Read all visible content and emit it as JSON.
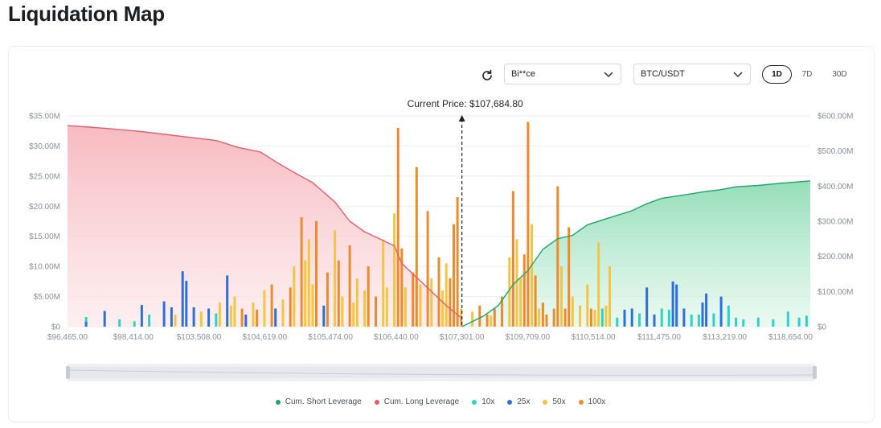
{
  "page": {
    "title": "Liquidation Map"
  },
  "controls": {
    "exchange": "Bi**ce",
    "pair": "BTC/USDT",
    "ranges": [
      "1D",
      "7D",
      "30D"
    ],
    "active_range": "1D"
  },
  "colors": {
    "short": "#1fa56b",
    "long": "#e35d6a",
    "x10": "#2ed2c4",
    "x25": "#2d6fd6",
    "x50": "#f4c542",
    "x100": "#ee8a2e"
  },
  "chart_data": {
    "type": "bar",
    "current_price_label": "Current Price: $107,684.80",
    "current_price": 107684.8,
    "x_tick_labels": [
      "$96,465.00",
      "$98,414.00",
      "$103,508.00",
      "$104,619.00",
      "$105,474.00",
      "$106,440.00",
      "$107,301.00",
      "$109,709.00",
      "$110,514.00",
      "$111,475.00",
      "$113,219.00",
      "$118,654.00"
    ],
    "y_left": {
      "ylim": [
        0,
        35000000
      ],
      "ticks": [
        "$0",
        "$5.00M",
        "$10.00M",
        "$15.00M",
        "$20.00M",
        "$25.00M",
        "$30.00M",
        "$35.00M"
      ]
    },
    "y_right": {
      "ylim": [
        0,
        600000000
      ],
      "ticks": [
        "$0",
        "$100.00M",
        "$200.00M",
        "$300.00M",
        "$400.00M",
        "$500.00M",
        "$600.00M"
      ]
    },
    "legend": [
      "Cum. Short Leverage",
      "Cum. Long Leverage",
      "10x",
      "25x",
      "50x",
      "100x"
    ],
    "series": [
      {
        "name": "Cum. Long Leverage",
        "axis": "right",
        "points": [
          [
            0,
            572
          ],
          [
            0.03,
            568
          ],
          [
            0.06,
            563
          ],
          [
            0.1,
            555
          ],
          [
            0.14,
            545
          ],
          [
            0.18,
            535
          ],
          [
            0.2,
            530
          ],
          [
            0.23,
            510
          ],
          [
            0.26,
            497
          ],
          [
            0.28,
            470
          ],
          [
            0.3,
            445
          ],
          [
            0.33,
            410
          ],
          [
            0.36,
            355
          ],
          [
            0.38,
            300
          ],
          [
            0.4,
            270
          ],
          [
            0.42,
            250
          ],
          [
            0.44,
            230
          ],
          [
            0.45,
            180
          ],
          [
            0.47,
            140
          ],
          [
            0.49,
            100
          ],
          [
            0.51,
            60
          ],
          [
            0.53,
            25
          ],
          [
            0.531,
            0
          ]
        ]
      },
      {
        "name": "Cum. Short Leverage",
        "axis": "right",
        "points": [
          [
            0.531,
            0
          ],
          [
            0.56,
            30
          ],
          [
            0.58,
            60
          ],
          [
            0.6,
            120
          ],
          [
            0.62,
            160
          ],
          [
            0.64,
            220
          ],
          [
            0.66,
            250
          ],
          [
            0.68,
            260
          ],
          [
            0.7,
            290
          ],
          [
            0.73,
            310
          ],
          [
            0.76,
            330
          ],
          [
            0.78,
            350
          ],
          [
            0.8,
            365
          ],
          [
            0.83,
            375
          ],
          [
            0.86,
            385
          ],
          [
            0.88,
            390
          ],
          [
            0.9,
            398
          ],
          [
            0.93,
            402
          ],
          [
            0.96,
            408
          ],
          [
            1,
            415
          ]
        ]
      }
    ],
    "bars": [
      [
        0.025,
        1.6,
        "x10"
      ],
      [
        0.025,
        0.8,
        "x25"
      ],
      [
        0.05,
        2.6,
        "x25"
      ],
      [
        0.07,
        1.2,
        "x10"
      ],
      [
        0.09,
        0.9,
        "x10"
      ],
      [
        0.1,
        3.6,
        "x25"
      ],
      [
        0.11,
        2.0,
        "x10"
      ],
      [
        0.13,
        4.2,
        "x25"
      ],
      [
        0.14,
        3.2,
        "x25"
      ],
      [
        0.145,
        2.0,
        "x50"
      ],
      [
        0.155,
        9.2,
        "x25"
      ],
      [
        0.16,
        7.6,
        "x25"
      ],
      [
        0.17,
        3.2,
        "x25"
      ],
      [
        0.18,
        2.5,
        "x50"
      ],
      [
        0.19,
        3.0,
        "x25"
      ],
      [
        0.2,
        2.2,
        "x10"
      ],
      [
        0.205,
        4.0,
        "x50"
      ],
      [
        0.215,
        8.5,
        "x25"
      ],
      [
        0.22,
        3.5,
        "x50"
      ],
      [
        0.225,
        5.0,
        "x50"
      ],
      [
        0.235,
        3.0,
        "x100"
      ],
      [
        0.24,
        2.0,
        "x25"
      ],
      [
        0.25,
        4.0,
        "x50"
      ],
      [
        0.255,
        2.8,
        "x100"
      ],
      [
        0.265,
        6.0,
        "x50"
      ],
      [
        0.275,
        7.0,
        "x100"
      ],
      [
        0.28,
        3.0,
        "x25"
      ],
      [
        0.29,
        4.5,
        "x50"
      ],
      [
        0.3,
        6.5,
        "x100"
      ],
      [
        0.305,
        10.0,
        "x50"
      ],
      [
        0.315,
        18.2,
        "x100"
      ],
      [
        0.32,
        11.0,
        "x50"
      ],
      [
        0.325,
        14.5,
        "x50"
      ],
      [
        0.33,
        7.0,
        "x50"
      ],
      [
        0.335,
        17.5,
        "x100"
      ],
      [
        0.345,
        3.5,
        "x25"
      ],
      [
        0.35,
        9.0,
        "x100"
      ],
      [
        0.36,
        16.0,
        "x50"
      ],
      [
        0.365,
        11.0,
        "x100"
      ],
      [
        0.37,
        5.0,
        "x50"
      ],
      [
        0.38,
        13.5,
        "x100"
      ],
      [
        0.385,
        4.0,
        "x50"
      ],
      [
        0.39,
        8.0,
        "x50"
      ],
      [
        0.4,
        6.0,
        "x50"
      ],
      [
        0.405,
        10.0,
        "x100"
      ],
      [
        0.415,
        5.0,
        "x100"
      ],
      [
        0.425,
        14.5,
        "x50"
      ],
      [
        0.43,
        6.5,
        "x50"
      ],
      [
        0.44,
        18.8,
        "x50"
      ],
      [
        0.445,
        33.0,
        "x100"
      ],
      [
        0.45,
        13.0,
        "x100"
      ],
      [
        0.455,
        6.5,
        "x50"
      ],
      [
        0.465,
        9.0,
        "x100"
      ],
      [
        0.47,
        26.5,
        "x100"
      ],
      [
        0.475,
        7.0,
        "x50"
      ],
      [
        0.485,
        19.2,
        "x100"
      ],
      [
        0.49,
        8.0,
        "x50"
      ],
      [
        0.5,
        11.5,
        "x100"
      ],
      [
        0.505,
        6.0,
        "x50"
      ],
      [
        0.51,
        10.5,
        "x50"
      ],
      [
        0.515,
        8.0,
        "x100"
      ],
      [
        0.52,
        17.0,
        "x100"
      ],
      [
        0.525,
        21.5,
        "x100"
      ],
      [
        0.53,
        3.0,
        "x50"
      ],
      [
        0.545,
        2.5,
        "x50"
      ],
      [
        0.555,
        3.5,
        "x100"
      ],
      [
        0.565,
        2.0,
        "x100"
      ],
      [
        0.57,
        1.8,
        "x50"
      ],
      [
        0.575,
        3.0,
        "x100"
      ],
      [
        0.585,
        5.0,
        "x100"
      ],
      [
        0.595,
        11.5,
        "x50"
      ],
      [
        0.6,
        22.5,
        "x100"
      ],
      [
        0.605,
        14.5,
        "x50"
      ],
      [
        0.61,
        8.0,
        "x50"
      ],
      [
        0.615,
        12.0,
        "x100"
      ],
      [
        0.62,
        34.0,
        "x100"
      ],
      [
        0.625,
        17.0,
        "x50"
      ],
      [
        0.63,
        8.5,
        "x100"
      ],
      [
        0.635,
        3.0,
        "x50"
      ],
      [
        0.64,
        4.0,
        "x100"
      ],
      [
        0.645,
        2.0,
        "x100"
      ],
      [
        0.655,
        3.0,
        "x100"
      ],
      [
        0.66,
        23.3,
        "x100"
      ],
      [
        0.665,
        10.0,
        "x50"
      ],
      [
        0.67,
        3.0,
        "x100"
      ],
      [
        0.675,
        16.5,
        "x100"
      ],
      [
        0.68,
        5.0,
        "x50"
      ],
      [
        0.69,
        3.5,
        "x50"
      ],
      [
        0.7,
        7.0,
        "x50"
      ],
      [
        0.705,
        3.0,
        "x100"
      ],
      [
        0.71,
        2.8,
        "x50"
      ],
      [
        0.715,
        14.0,
        "x50"
      ],
      [
        0.72,
        3.0,
        "x10"
      ],
      [
        0.725,
        3.5,
        "x50"
      ],
      [
        0.73,
        10.0,
        "x50"
      ],
      [
        0.74,
        1.5,
        "x10"
      ],
      [
        0.75,
        2.8,
        "x25"
      ],
      [
        0.76,
        3.0,
        "x25"
      ],
      [
        0.77,
        2.2,
        "x10"
      ],
      [
        0.78,
        6.5,
        "x25"
      ],
      [
        0.79,
        2.0,
        "x25"
      ],
      [
        0.8,
        3.0,
        "x10"
      ],
      [
        0.81,
        2.8,
        "x10"
      ],
      [
        0.815,
        7.5,
        "x25"
      ],
      [
        0.82,
        7.0,
        "x25"
      ],
      [
        0.83,
        3.0,
        "x25"
      ],
      [
        0.84,
        2.0,
        "x10"
      ],
      [
        0.85,
        2.0,
        "x10"
      ],
      [
        0.855,
        4.0,
        "x25"
      ],
      [
        0.86,
        5.5,
        "x25"
      ],
      [
        0.87,
        2.2,
        "x10"
      ],
      [
        0.88,
        5.0,
        "x25"
      ],
      [
        0.89,
        3.5,
        "x10"
      ],
      [
        0.9,
        1.5,
        "x10"
      ],
      [
        0.91,
        1.2,
        "x10"
      ],
      [
        0.93,
        1.5,
        "x10"
      ],
      [
        0.95,
        1.2,
        "x10"
      ],
      [
        0.97,
        2.5,
        "x10"
      ],
      [
        0.985,
        1.5,
        "x10"
      ],
      [
        0.995,
        1.8,
        "x10"
      ]
    ]
  }
}
